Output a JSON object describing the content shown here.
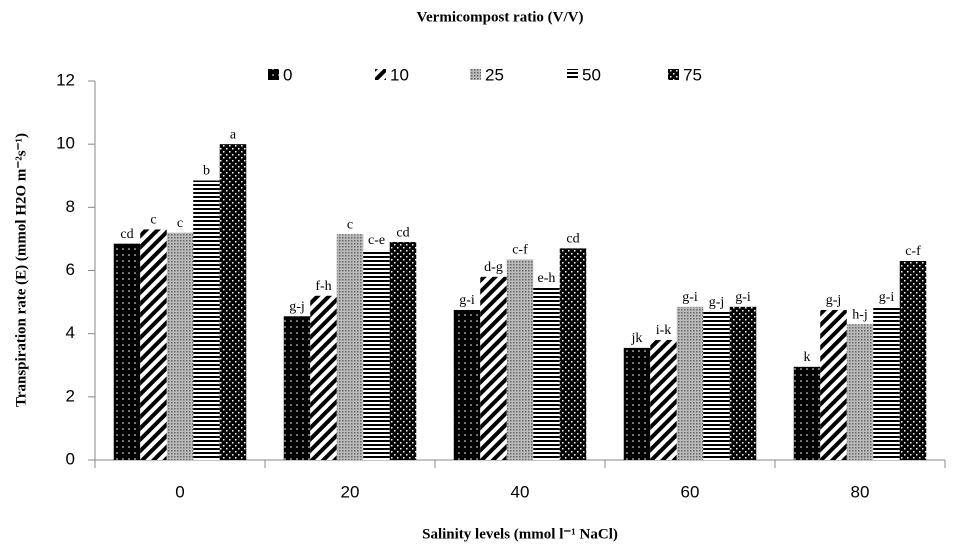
{
  "chart_data": {
    "type": "bar",
    "legend_title": "Vermicompost ratio (V/V)",
    "x_label": "Salinity levels (mmol l⁻¹ NaCl)",
    "y_label": "Transpiration rate (E) (mmol H2O m⁻²s⁻¹)",
    "categories": [
      "0",
      "20",
      "40",
      "60",
      "80"
    ],
    "series": [
      {
        "name": "0",
        "color": "#000000",
        "pattern": "dots",
        "values": [
          6.85,
          4.55,
          4.75,
          3.55,
          2.95
        ],
        "letters": [
          "cd",
          "g-j",
          "g-i",
          "jk",
          "k"
        ]
      },
      {
        "name": "10",
        "color": "#000000",
        "pattern": "diagonal",
        "values": [
          7.3,
          5.2,
          5.8,
          3.8,
          4.75
        ],
        "letters": [
          "c",
          "f-h",
          "d-g",
          "i-k",
          "g-j"
        ]
      },
      {
        "name": "25",
        "color": "#888888",
        "pattern": "gray-dots",
        "values": [
          7.2,
          7.15,
          6.35,
          4.85,
          4.3
        ],
        "letters": [
          "c",
          "c",
          "c-f",
          "g-i",
          "h-j"
        ]
      },
      {
        "name": "50",
        "color": "#000000",
        "pattern": "horizontal",
        "values": [
          8.85,
          6.65,
          5.45,
          4.7,
          4.85
        ],
        "letters": [
          "b",
          "c-e",
          "e-h",
          "g-j",
          "g-i"
        ]
      },
      {
        "name": "75",
        "color": "#000000",
        "pattern": "checker",
        "values": [
          10.0,
          6.9,
          6.7,
          4.85,
          6.3
        ],
        "letters": [
          "a",
          "cd",
          "cd",
          "g-i",
          "c-f"
        ]
      }
    ],
    "ylim": [
      0,
      12
    ],
    "yticks": [
      0,
      2,
      4,
      6,
      8,
      10,
      12
    ],
    "grid": false,
    "legend": "top"
  }
}
